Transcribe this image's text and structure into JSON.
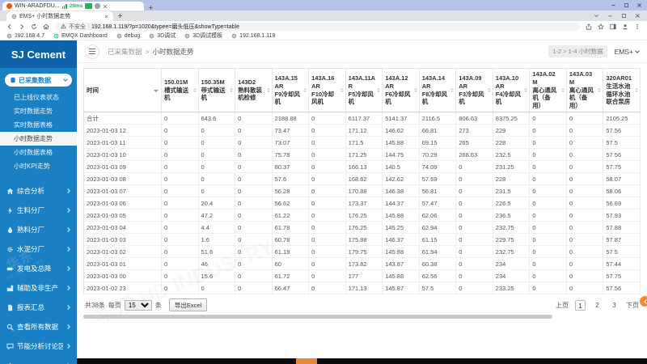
{
  "colors": {
    "accent": "#1a80c4",
    "sidebar_dark": "#0e63a8",
    "orange_fab": "#f08a3c",
    "latency_green": "#27ae60"
  },
  "window": {
    "title": "WIN-ARADFDU...",
    "latency": "29ms"
  },
  "browser": {
    "tab_title": "EMS+ 小时数据走势",
    "security_label": "不安全",
    "url": "192.168.1.119/?p=1020&typee=磨头低压&showType=table",
    "bookmarks": [
      {
        "label": "192.168.4.7",
        "icon": "globe"
      },
      {
        "label": "EMQX Dashboard",
        "icon": "emqx"
      },
      {
        "label": "debug",
        "icon": "globe"
      },
      {
        "label": "3D调试",
        "icon": "globe"
      },
      {
        "label": "3D调试模板",
        "icon": "globe"
      },
      {
        "label": "192.168.1.119",
        "icon": "globe"
      }
    ]
  },
  "sidebar": {
    "logo": "SJ Cement",
    "active_group": {
      "label": "已采集数据",
      "icon": "database"
    },
    "submenu": [
      "已上线仪表状态",
      "实时数据走势",
      "实时数据表格",
      "小时数据走势",
      "小时数据表格",
      "小时KPI走势"
    ],
    "active_submenu": "小时数据走势",
    "groups": [
      {
        "label": "综合分析",
        "icon": "home"
      },
      {
        "label": "生料分厂",
        "icon": "bolt"
      },
      {
        "label": "熟料分厂",
        "icon": "droplet"
      },
      {
        "label": "水泥分厂",
        "icon": "gear"
      },
      {
        "label": "发电及总降",
        "icon": "battery"
      },
      {
        "label": "辅助及非生产",
        "icon": "factory"
      },
      {
        "label": "报表汇总",
        "icon": "file"
      },
      {
        "label": "查看所有数据",
        "icon": "search"
      },
      {
        "label": "节能分析讨论区",
        "icon": "chat"
      }
    ],
    "watermark": {
      "cn": "华东",
      "en": "HD INDUSTRY"
    }
  },
  "topbar": {
    "breadcrumb_root": "已采集数据",
    "breadcrumb_sep": ">",
    "breadcrumb_current": "小时数据走势",
    "range_badge": "1-2 > 1-4 小时数据",
    "app_menu": "EMS+"
  },
  "table": {
    "columns": [
      {
        "code": "时间",
        "name": ""
      },
      {
        "code": "150.01M",
        "name": "槽式输送机"
      },
      {
        "code": "150.35M",
        "name": "带式输送机"
      },
      {
        "code": "143D2",
        "name": "熟料散装机检修"
      },
      {
        "code": "143A.15AR",
        "name": "F9冷却风机"
      },
      {
        "code": "143A.16AR",
        "name": "F10冷却风机"
      },
      {
        "code": "143A.11AR",
        "name": "F5冷却风机"
      },
      {
        "code": "143A.12AR",
        "name": "F6冷却风机"
      },
      {
        "code": "143A.14AR",
        "name": "F8冷却风机"
      },
      {
        "code": "143A.09AR",
        "name": "F3冷却风机"
      },
      {
        "code": "143A.10AR",
        "name": "F4冷却风机"
      },
      {
        "code": "143A.02M",
        "name": "离心通风机（备用）"
      },
      {
        "code": "143A.03M",
        "name": "离心通风机（备用）"
      },
      {
        "code": "320AR01",
        "name": "生活水池循环水池联合泵房"
      }
    ],
    "rows": [
      [
        "合计",
        "0",
        "643.6",
        "0",
        "2188.88",
        "0",
        "6117.37",
        "5141.37",
        "2116.5",
        "806.63",
        "8375.25",
        "0",
        "0",
        "2105.25"
      ],
      [
        "2023-01-03 12",
        "0",
        "0",
        "0",
        "73.47",
        "0",
        "171.12",
        "146.62",
        "66.81",
        "273",
        "229",
        "0",
        "0",
        "57.56"
      ],
      [
        "2023-01-03 11",
        "0",
        "0",
        "0",
        "73.07",
        "0",
        "171.5",
        "145.88",
        "69.15",
        "265",
        "228",
        "0",
        "0",
        "57.5"
      ],
      [
        "2023-01-03 10",
        "0",
        "0",
        "0",
        "75.78",
        "0",
        "171.25",
        "144.75",
        "70.29",
        "268.63",
        "232.5",
        "0",
        "0",
        "57.56"
      ],
      [
        "2023-01-03 09",
        "0",
        "0",
        "0",
        "80.37",
        "0",
        "166.13",
        "140.5",
        "74.09",
        "0",
        "231.25",
        "0",
        "0",
        "57.75"
      ],
      [
        "2023-01-03 08",
        "0",
        "0",
        "0",
        "57.6",
        "0",
        "168.62",
        "142.62",
        "57.69",
        "0",
        "228",
        "0",
        "0",
        "58.07"
      ],
      [
        "2023-01-03 07",
        "0",
        "0",
        "0",
        "56.28",
        "0",
        "170.88",
        "146.38",
        "56.81",
        "0",
        "231.5",
        "0",
        "0",
        "58.06"
      ],
      [
        "2023-01-03 06",
        "0",
        "20.4",
        "0",
        "56.62",
        "0",
        "173.37",
        "144.37",
        "57.47",
        "0",
        "226.5",
        "0",
        "0",
        "56.69"
      ],
      [
        "2023-01-03 05",
        "0",
        "47.2",
        "0",
        "61.22",
        "0",
        "176.25",
        "145.88",
        "62.06",
        "0",
        "236.5",
        "0",
        "0",
        "57.93"
      ],
      [
        "2023-01-03 04",
        "0",
        "4.4",
        "0",
        "61.78",
        "0",
        "176.25",
        "145.25",
        "62.94",
        "0",
        "232.75",
        "0",
        "0",
        "57.88"
      ],
      [
        "2023-01-03 03",
        "0",
        "1.6",
        "0",
        "60.78",
        "0",
        "175.88",
        "146.37",
        "61.15",
        "0",
        "229.75",
        "0",
        "0",
        "57.87"
      ],
      [
        "2023-01-03 02",
        "0",
        "51.6",
        "0",
        "61.19",
        "0",
        "179.75",
        "145.88",
        "61.94",
        "0",
        "232.75",
        "0",
        "0",
        "57.5"
      ],
      [
        "2023-01-03 01",
        "0",
        "46",
        "0",
        "60",
        "0",
        "173.62",
        "143.87",
        "60.38",
        "0",
        "234",
        "0",
        "0",
        "57.44"
      ],
      [
        "2023-01-03 00",
        "0",
        "15.6",
        "0",
        "61.72",
        "0",
        "177",
        "145.88",
        "62.56",
        "0",
        "234",
        "0",
        "0",
        "57.75"
      ],
      [
        "2023-01-02 23",
        "0",
        "0",
        "0",
        "66.47",
        "0",
        "171.13",
        "145.87",
        "57.5",
        "0",
        "233.25",
        "0",
        "0",
        "57.56"
      ]
    ]
  },
  "pagination": {
    "total": "共38条",
    "per_page_prefix": "每页",
    "per_page_value": "15",
    "per_page_suffix": "条",
    "export_label": "导出Excel",
    "prev": "上页",
    "pages": [
      "1",
      "2",
      "3"
    ],
    "active_page": "1",
    "next": "下页"
  }
}
